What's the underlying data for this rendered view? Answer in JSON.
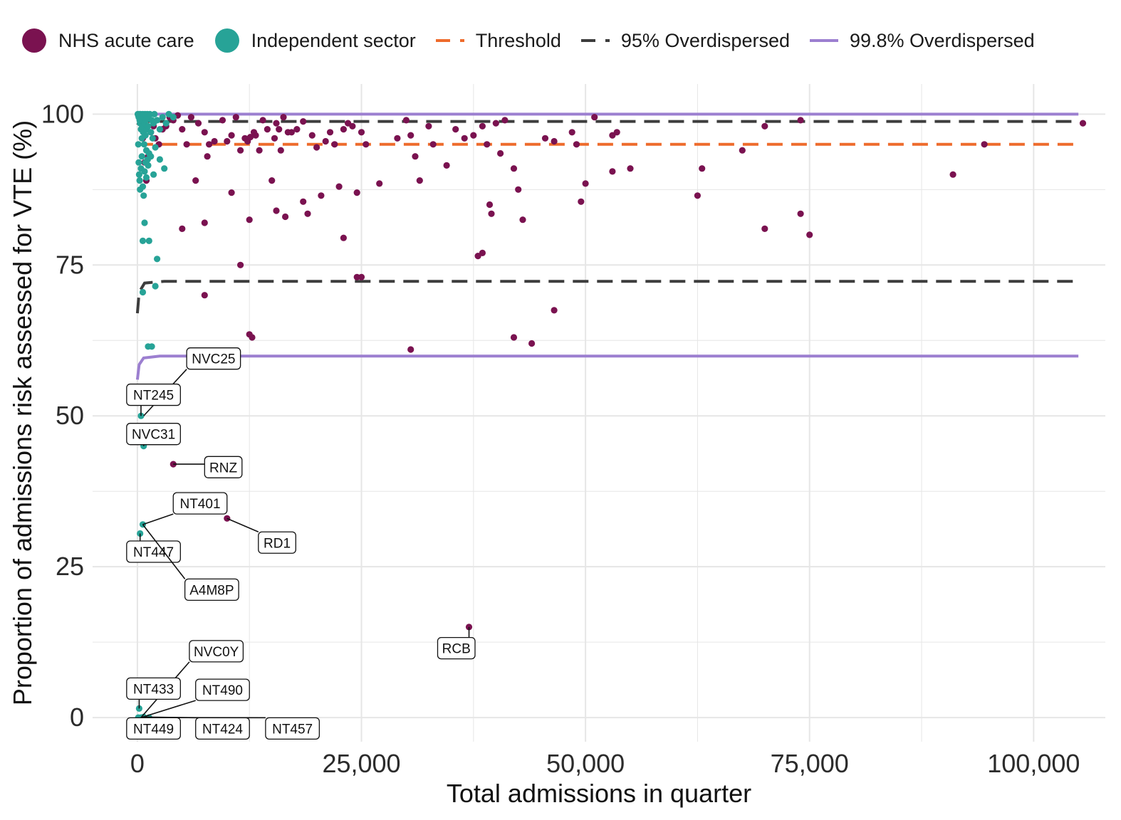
{
  "chart_data": {
    "type": "scatter",
    "xlabel": "Total admissions in quarter",
    "ylabel": "Proportion of admissions risk assessed for VTE (%)",
    "xlim": [
      -5000,
      108000
    ],
    "ylim": [
      -4,
      105
    ],
    "x_ticks": [
      0,
      25000,
      50000,
      75000,
      100000
    ],
    "x_tick_labels": [
      "0",
      "25,000",
      "50,000",
      "75,000",
      "100,000"
    ],
    "y_ticks": [
      0,
      25,
      50,
      75,
      100
    ],
    "y_tick_labels": [
      "0",
      "25",
      "50",
      "75",
      "100"
    ],
    "grid": true,
    "legend_position": "top",
    "colors": {
      "nhs": "#7a1250",
      "independent": "#27a397",
      "threshold": "#ee6b2c",
      "overdispersed_95": "#3d3d3d",
      "overdispersed_998": "#9c7fd0",
      "grid": "#e6e6e6"
    },
    "legend": [
      {
        "key": "nhs",
        "label": "NHS acute care",
        "kind": "point"
      },
      {
        "key": "independent",
        "label": "Independent sector",
        "kind": "point"
      },
      {
        "key": "threshold",
        "label": "Threshold",
        "kind": "dash"
      },
      {
        "key": "overdispersed_95",
        "label": "95% Overdispersed",
        "kind": "dash"
      },
      {
        "key": "overdispersed_998",
        "label": "99.8% Overdispersed",
        "kind": "solid"
      }
    ],
    "series": [
      {
        "name": "NHS acute care",
        "key": "nhs",
        "points": [
          [
            600,
            96
          ],
          [
            800,
            92
          ],
          [
            1000,
            89
          ],
          [
            1200,
            93
          ],
          [
            1500,
            97
          ],
          [
            1800,
            98
          ],
          [
            2000,
            96
          ],
          [
            2400,
            95
          ],
          [
            2800,
            97.5
          ],
          [
            3200,
            98
          ],
          [
            3600,
            99.5
          ],
          [
            4000,
            99
          ],
          [
            4500,
            99.8
          ],
          [
            5000,
            97.5
          ],
          [
            5500,
            95
          ],
          [
            6000,
            99.5
          ],
          [
            6500,
            89
          ],
          [
            6800,
            98.5
          ],
          [
            7500,
            97
          ],
          [
            7800,
            93
          ],
          [
            8000,
            95
          ],
          [
            8600,
            95.5
          ],
          [
            9500,
            99
          ],
          [
            10000,
            95.5
          ],
          [
            10500,
            96.5
          ],
          [
            11000,
            99.5
          ],
          [
            11500,
            94
          ],
          [
            12000,
            96
          ],
          [
            12300,
            95.5
          ],
          [
            12600,
            96.2
          ],
          [
            13000,
            97
          ],
          [
            13200,
            96.5
          ],
          [
            13600,
            94
          ],
          [
            14000,
            99
          ],
          [
            14500,
            97.5
          ],
          [
            15000,
            89
          ],
          [
            15300,
            96
          ],
          [
            15500,
            98.5
          ],
          [
            15800,
            97.5
          ],
          [
            16000,
            94
          ],
          [
            16300,
            99.5
          ],
          [
            16800,
            97
          ],
          [
            17200,
            97
          ],
          [
            17800,
            97.5
          ],
          [
            18500,
            98.8
          ],
          [
            19000,
            83.5
          ],
          [
            19500,
            96.5
          ],
          [
            20000,
            94.5
          ],
          [
            20500,
            86.5
          ],
          [
            21000,
            95.5
          ],
          [
            21500,
            97
          ],
          [
            22000,
            95
          ],
          [
            22500,
            88
          ],
          [
            23000,
            97.5
          ],
          [
            23500,
            98.5
          ],
          [
            24000,
            98
          ],
          [
            24500,
            87
          ],
          [
            25000,
            97
          ],
          [
            25500,
            95
          ],
          [
            27000,
            88.5
          ],
          [
            29000,
            96
          ],
          [
            30000,
            99
          ],
          [
            30500,
            96.5
          ],
          [
            31000,
            93
          ],
          [
            31500,
            89
          ],
          [
            32500,
            98
          ],
          [
            33000,
            95
          ],
          [
            34500,
            91.5
          ],
          [
            35500,
            97.5
          ],
          [
            36500,
            96
          ],
          [
            37500,
            96.5
          ],
          [
            38500,
            98
          ],
          [
            39000,
            95
          ],
          [
            39300,
            85
          ],
          [
            39500,
            83.5
          ],
          [
            40000,
            98.5
          ],
          [
            40500,
            93.5
          ],
          [
            41000,
            99
          ],
          [
            42000,
            91
          ],
          [
            42500,
            87.5
          ],
          [
            43000,
            82.5
          ],
          [
            45500,
            96
          ],
          [
            46500,
            95.5
          ],
          [
            48500,
            97
          ],
          [
            49000,
            95
          ],
          [
            49500,
            85.5
          ],
          [
            50000,
            88.5
          ],
          [
            51000,
            99.5
          ],
          [
            53000,
            96.5
          ],
          [
            53500,
            97
          ],
          [
            53000,
            90.5
          ],
          [
            55000,
            91
          ],
          [
            62500,
            86.5
          ],
          [
            63000,
            91
          ],
          [
            67500,
            94
          ],
          [
            70000,
            98
          ],
          [
            74000,
            99
          ],
          [
            91000,
            90
          ],
          [
            94500,
            95
          ],
          [
            105500,
            98.5
          ],
          [
            5000,
            81
          ],
          [
            7500,
            82
          ],
          [
            10500,
            87
          ],
          [
            12500,
            82.5
          ],
          [
            15500,
            84
          ],
          [
            16500,
            83
          ],
          [
            18500,
            85.5
          ],
          [
            23000,
            79.5
          ],
          [
            38000,
            76.5
          ],
          [
            38500,
            77
          ],
          [
            70000,
            81
          ],
          [
            74000,
            83.5
          ],
          [
            75000,
            80
          ],
          [
            7500,
            70
          ],
          [
            11500,
            75
          ],
          [
            12500,
            63.5
          ],
          [
            12800,
            63
          ],
          [
            24500,
            73
          ],
          [
            30500,
            61
          ],
          [
            42000,
            63
          ],
          [
            44000,
            62
          ],
          [
            46500,
            67.5
          ],
          [
            25000,
            73
          ],
          [
            4000,
            42
          ],
          [
            10000,
            33
          ],
          [
            37000,
            15
          ]
        ]
      },
      {
        "name": "Independent sector",
        "key": "independent",
        "points": [
          [
            50,
            100
          ],
          [
            100,
            99.8
          ],
          [
            150,
            99.5
          ],
          [
            200,
            100
          ],
          [
            250,
            99
          ],
          [
            300,
            98.5
          ],
          [
            350,
            100
          ],
          [
            400,
            97.5
          ],
          [
            450,
            99
          ],
          [
            500,
            96
          ],
          [
            550,
            98
          ],
          [
            600,
            100
          ],
          [
            650,
            97
          ],
          [
            700,
            99.5
          ],
          [
            750,
            95
          ],
          [
            800,
            98.5
          ],
          [
            850,
            100
          ],
          [
            900,
            96.5
          ],
          [
            950,
            99
          ],
          [
            1000,
            94
          ],
          [
            1050,
            97.5
          ],
          [
            1100,
            100
          ],
          [
            1150,
            92.5
          ],
          [
            1200,
            98
          ],
          [
            1250,
            99.5
          ],
          [
            1300,
            93.5
          ],
          [
            1400,
            100
          ],
          [
            1500,
            97
          ],
          [
            1600,
            99
          ],
          [
            1700,
            96
          ],
          [
            1800,
            98.5
          ],
          [
            1900,
            100
          ],
          [
            2000,
            94.5
          ],
          [
            2200,
            99
          ],
          [
            2500,
            97.5
          ],
          [
            2800,
            99.5
          ],
          [
            3200,
            98.5
          ],
          [
            3500,
            100
          ],
          [
            4000,
            99.5
          ],
          [
            100,
            95
          ],
          [
            150,
            92
          ],
          [
            200,
            90
          ],
          [
            250,
            89
          ],
          [
            300,
            87.5
          ],
          [
            400,
            91
          ],
          [
            500,
            93
          ],
          [
            600,
            88
          ],
          [
            700,
            86.5
          ],
          [
            800,
            90.5
          ],
          [
            900,
            92
          ],
          [
            1000,
            89.5
          ],
          [
            1200,
            91.5
          ],
          [
            1500,
            93
          ],
          [
            1800,
            90
          ],
          [
            2500,
            92.5
          ],
          [
            3000,
            91
          ],
          [
            600,
            79
          ],
          [
            800,
            82
          ],
          [
            1300,
            79
          ],
          [
            2200,
            76
          ],
          [
            600,
            70.5
          ],
          [
            2000,
            71.5
          ],
          [
            1200,
            61.5
          ],
          [
            1600,
            61.5
          ],
          [
            400,
            50
          ],
          [
            700,
            45
          ],
          [
            300,
            30.5
          ],
          [
            600,
            32
          ],
          [
            200,
            1.5
          ],
          [
            400,
            0
          ],
          [
            700,
            0.1
          ],
          [
            1300,
            0
          ],
          [
            100,
            0
          ]
        ]
      }
    ],
    "reference_lines": [
      {
        "name": "Threshold",
        "key": "threshold",
        "style": "dashed",
        "points": [
          [
            0,
            95
          ],
          [
            105000,
            95
          ]
        ]
      },
      {
        "name": "95% Overdispersed",
        "key": "overdispersed_95",
        "style": "dashed",
        "points": [
          [
            0,
            98.2
          ],
          [
            300,
            98.8
          ],
          [
            2000,
            98.8
          ],
          [
            105000,
            98.8
          ]
        ]
      },
      {
        "name": "95% Overdispersed",
        "key": "overdispersed_95",
        "style": "dashed",
        "points": [
          [
            0,
            67
          ],
          [
            200,
            70.5
          ],
          [
            800,
            72
          ],
          [
            3000,
            72.3
          ],
          [
            105000,
            72.3
          ]
        ]
      },
      {
        "name": "99.8% Overdispersed",
        "key": "overdispersed_998",
        "style": "solid",
        "points": [
          [
            0,
            100
          ],
          [
            105000,
            100
          ]
        ]
      },
      {
        "name": "99.8% Overdispersed",
        "key": "overdispersed_998",
        "style": "solid",
        "points": [
          [
            0,
            56
          ],
          [
            200,
            58.5
          ],
          [
            700,
            59.6
          ],
          [
            2500,
            59.9
          ],
          [
            105000,
            59.9
          ]
        ]
      }
    ],
    "point_labels": [
      {
        "text": "NVC25",
        "x": 700,
        "y": 50,
        "label_x": 5500,
        "label_y": 59.5
      },
      {
        "text": "NT245",
        "x": 400,
        "y": 50,
        "label_x": -1200,
        "label_y": 53.5
      },
      {
        "text": "NVC31",
        "x": 700,
        "y": 45,
        "label_x": -1200,
        "label_y": 47
      },
      {
        "text": "RNZ",
        "x": 4000,
        "y": 42,
        "label_x": 7500,
        "label_y": 41.5
      },
      {
        "text": "NT401",
        "x": 600,
        "y": 32,
        "label_x": 4000,
        "label_y": 35.5
      },
      {
        "text": "RD1",
        "x": 10000,
        "y": 33,
        "label_x": 13500,
        "label_y": 29
      },
      {
        "text": "NT447",
        "x": 300,
        "y": 30.5,
        "label_x": -1200,
        "label_y": 27.5
      },
      {
        "text": "A4M8P",
        "x": 600,
        "y": 32,
        "label_x": 5300,
        "label_y": 21.2
      },
      {
        "text": "RCB",
        "x": 37000,
        "y": 15,
        "label_x": 33500,
        "label_y": 11.5
      },
      {
        "text": "NVC0Y",
        "x": 400,
        "y": 0,
        "label_x": 5800,
        "label_y": 11
      },
      {
        "text": "NT433",
        "x": 200,
        "y": 1.5,
        "label_x": -1200,
        "label_y": 4.8
      },
      {
        "text": "NT490",
        "x": 400,
        "y": 0,
        "label_x": 6500,
        "label_y": 4.6
      },
      {
        "text": "NT449",
        "x": 100,
        "y": 0,
        "label_x": -1200,
        "label_y": -1.8
      },
      {
        "text": "NT424",
        "x": 700,
        "y": 0.1,
        "label_x": 6500,
        "label_y": -1.8
      },
      {
        "text": "NT457",
        "x": 1300,
        "y": 0,
        "label_x": 14300,
        "label_y": -1.8
      }
    ]
  }
}
